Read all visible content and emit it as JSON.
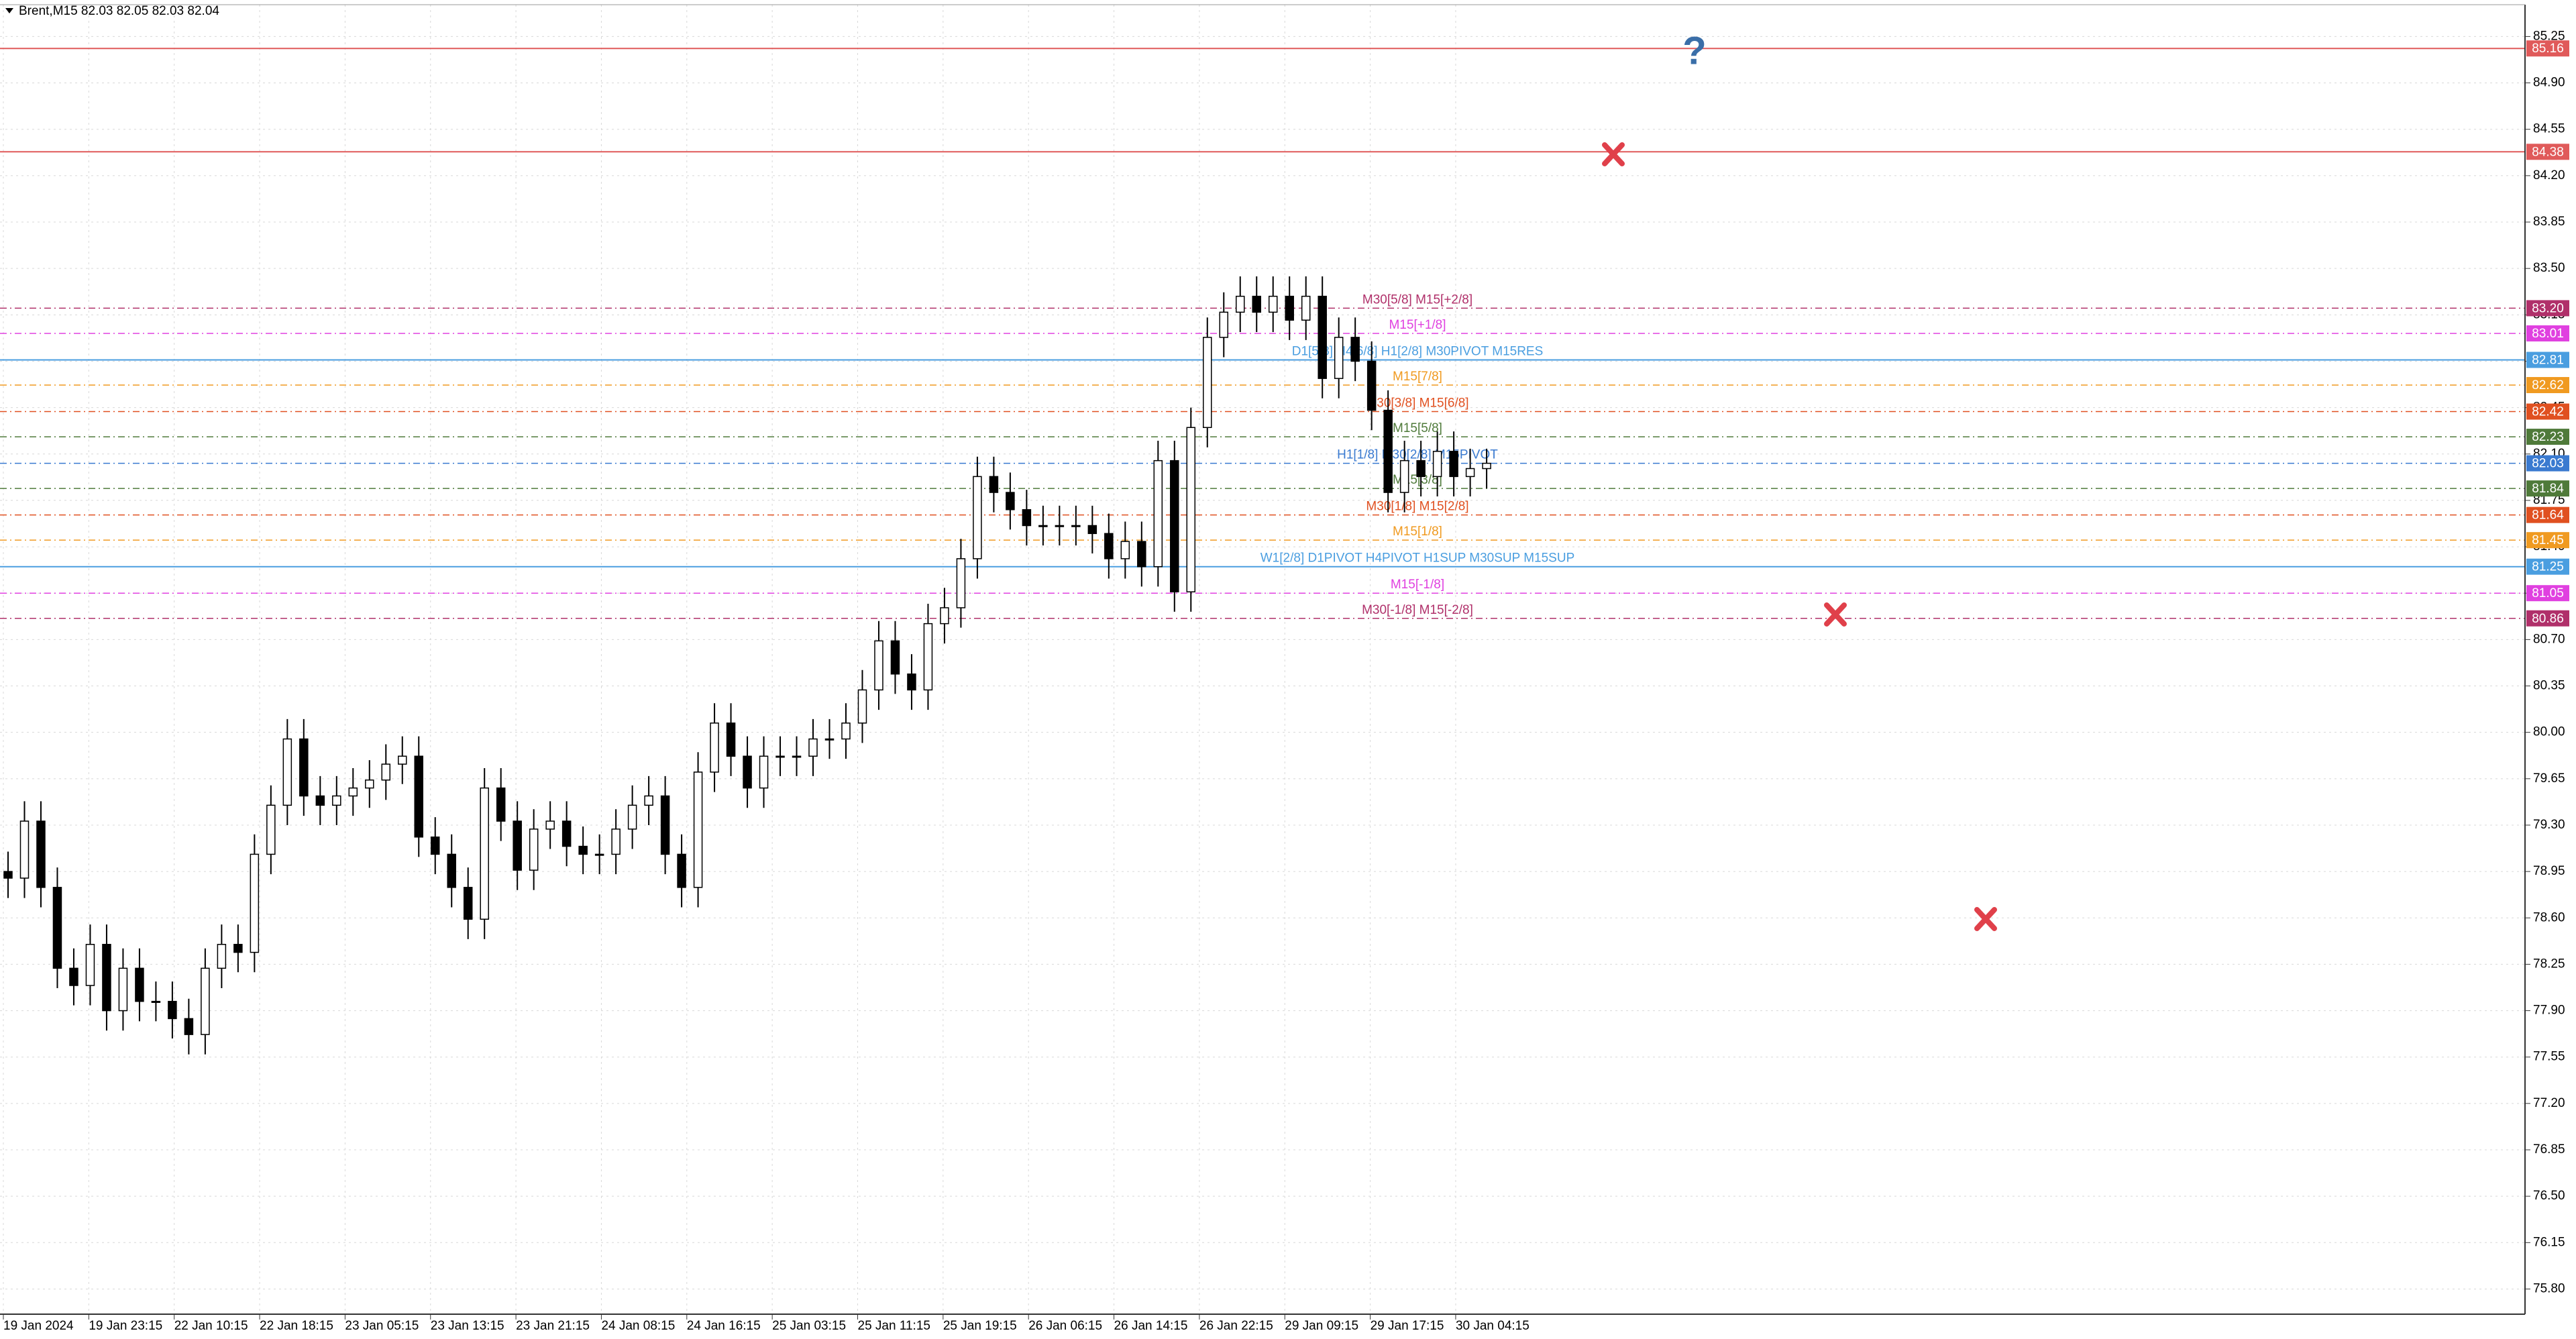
{
  "chart_data": {
    "type": "candlestick",
    "title": "Brent,M15 82.03 82.05 82.03 82.04",
    "open": [
      78.95,
      78.9,
      79.33,
      78.83,
      78.22,
      78.09,
      78.4,
      77.9,
      78.22,
      77.97,
      77.97,
      77.84,
      77.72,
      78.22,
      78.4,
      78.34,
      79.08,
      79.45,
      79.95,
      79.52,
      79.45,
      79.52,
      79.58,
      79.64,
      79.76,
      79.82,
      79.21,
      79.08,
      78.83,
      78.59,
      79.58,
      79.33,
      78.96,
      79.27,
      79.33,
      79.14,
      79.08,
      79.08,
      79.27,
      79.45,
      79.52,
      79.08,
      78.83,
      79.7,
      80.07,
      79.82,
      79.58,
      79.82,
      79.82,
      79.82,
      79.95,
      79.95,
      80.07,
      80.32,
      80.69,
      80.44,
      80.32,
      80.82,
      80.94,
      81.31,
      81.93,
      81.81,
      81.68,
      81.56,
      81.56,
      81.56,
      81.56,
      81.5,
      81.31,
      81.44,
      81.25,
      82.05,
      81.06,
      82.3,
      82.98,
      83.17,
      83.29,
      83.17,
      83.29,
      83.11,
      83.29,
      82.67,
      82.98,
      82.8,
      82.43,
      81.81,
      82.05,
      81.93,
      82.12,
      81.93,
      81.99
    ],
    "high": [
      79.1,
      79.48,
      79.48,
      78.98,
      78.37,
      78.55,
      78.55,
      78.37,
      78.37,
      78.12,
      78.12,
      77.99,
      78.37,
      78.55,
      78.55,
      79.23,
      79.6,
      80.1,
      80.1,
      79.67,
      79.67,
      79.73,
      79.79,
      79.91,
      79.97,
      79.97,
      79.36,
      79.23,
      78.98,
      79.73,
      79.73,
      79.48,
      79.42,
      79.48,
      79.48,
      79.29,
      79.23,
      79.42,
      79.6,
      79.67,
      79.67,
      79.23,
      79.85,
      80.22,
      80.22,
      79.97,
      79.97,
      79.97,
      79.97,
      80.1,
      80.1,
      80.22,
      80.47,
      80.84,
      80.84,
      80.59,
      80.97,
      81.09,
      81.46,
      82.08,
      82.08,
      81.96,
      81.83,
      81.71,
      81.71,
      81.71,
      81.71,
      81.65,
      81.59,
      81.59,
      82.2,
      82.2,
      82.45,
      83.13,
      83.32,
      83.44,
      83.44,
      83.44,
      83.44,
      83.44,
      83.44,
      83.13,
      83.13,
      82.95,
      82.58,
      82.2,
      82.2,
      82.27,
      82.27,
      82.14,
      82.14
    ],
    "low": [
      78.75,
      78.75,
      78.68,
      78.07,
      77.94,
      77.94,
      77.75,
      77.75,
      77.82,
      77.82,
      77.69,
      77.57,
      77.57,
      78.07,
      78.19,
      78.19,
      78.93,
      79.3,
      79.37,
      79.3,
      79.3,
      79.37,
      79.43,
      79.49,
      79.61,
      79.06,
      78.93,
      78.68,
      78.44,
      78.44,
      79.18,
      78.81,
      78.81,
      79.12,
      78.99,
      78.93,
      78.93,
      78.93,
      79.12,
      79.3,
      78.93,
      78.68,
      78.68,
      79.55,
      79.67,
      79.43,
      79.43,
      79.67,
      79.67,
      79.67,
      79.8,
      79.8,
      79.92,
      80.17,
      80.29,
      80.17,
      80.17,
      80.67,
      80.79,
      81.16,
      81.66,
      81.53,
      81.41,
      81.41,
      81.41,
      81.41,
      81.35,
      81.16,
      81.16,
      81.1,
      81.1,
      80.91,
      80.91,
      82.15,
      82.83,
      83.02,
      83.02,
      83.02,
      82.96,
      82.96,
      82.52,
      82.52,
      82.65,
      82.28,
      81.66,
      81.66,
      81.78,
      81.78,
      81.78,
      81.78,
      81.84
    ],
    "close": [
      78.9,
      79.33,
      78.83,
      78.22,
      78.09,
      78.4,
      77.9,
      78.22,
      77.97,
      77.97,
      77.84,
      77.72,
      78.22,
      78.4,
      78.34,
      79.08,
      79.45,
      79.95,
      79.52,
      79.45,
      79.52,
      79.58,
      79.64,
      79.76,
      79.82,
      79.21,
      79.08,
      78.83,
      78.59,
      79.58,
      79.33,
      78.96,
      79.27,
      79.33,
      79.14,
      79.08,
      79.08,
      79.27,
      79.45,
      79.52,
      79.08,
      78.83,
      79.7,
      80.07,
      79.82,
      79.58,
      79.82,
      79.82,
      79.82,
      79.95,
      79.95,
      80.07,
      80.32,
      80.69,
      80.44,
      80.32,
      80.82,
      80.94,
      81.31,
      81.93,
      81.81,
      81.68,
      81.56,
      81.56,
      81.56,
      81.56,
      81.5,
      81.31,
      81.44,
      81.25,
      82.05,
      81.06,
      82.3,
      82.98,
      83.17,
      83.29,
      83.17,
      83.29,
      83.11,
      83.29,
      82.67,
      82.98,
      82.8,
      82.43,
      81.81,
      82.05,
      81.93,
      82.12,
      81.93,
      81.99,
      82.03
    ],
    "x_labels": [
      "19 Jan 2024",
      "19 Jan 23:15",
      "22 Jan 10:15",
      "22 Jan 18:15",
      "23 Jan 05:15",
      "23 Jan 13:15",
      "23 Jan 21:15",
      "24 Jan 08:15",
      "24 Jan 16:15",
      "25 Jan 03:15",
      "25 Jan 11:15",
      "25 Jan 19:15",
      "26 Jan 06:15",
      "26 Jan 14:15",
      "26 Jan 22:15",
      "29 Jan 09:15",
      "29 Jan 17:15",
      "30 Jan 04:15"
    ],
    "ylim": [
      75.61,
      85.49
    ],
    "yticks": [
      85.25,
      {
        "value": 84.9,
        "label": "84.90"
      },
      84.55,
      {
        "value": 84.2,
        "label": "84.20"
      },
      83.85,
      {
        "value": 83.5,
        "label": "83.50"
      },
      83.15,
      {
        "value": 82.8,
        "label": "82.80"
      },
      82.45,
      {
        "value": 82.1,
        "label": "82.10"
      },
      81.75,
      {
        "value": 81.4,
        "label": "81.40"
      },
      81.05,
      {
        "value": 80.7,
        "label": "80.70"
      },
      80.35,
      {
        "value": 80,
        "label": "80.00"
      },
      79.65,
      {
        "value": 79.3,
        "label": "79.30"
      },
      78.95,
      {
        "value": 78.6,
        "label": "78.60"
      },
      78.25,
      {
        "value": 77.9,
        "label": "77.90"
      },
      77.55,
      {
        "value": 77.2,
        "label": "77.20"
      },
      76.85,
      {
        "value": 76.5,
        "label": "76.50"
      },
      76.15,
      {
        "value": 75.8,
        "label": "75.80"
      }
    ],
    "grid": true,
    "levels": [
      {
        "value": 85.16,
        "color": "#e05a5a"
      },
      {
        "value": 84.38,
        "color": "#e05a5a"
      },
      {
        "value": 83.2,
        "label": "83.20",
        "color": "#b0306a",
        "text": "M30[5/8] M15[+2/8]"
      },
      {
        "value": 83.01,
        "color": "#e040e0",
        "text": "M15[+1/8]"
      },
      {
        "value": 82.81,
        "color": "#4a9ee0",
        "text": "D1[5/8] H4[6/8] H1[2/8] M30PIVOT M15RES"
      },
      {
        "value": 82.62,
        "color": "#f09a20",
        "text": "M15[7/8]"
      },
      {
        "value": 82.42,
        "color": "#e05020",
        "text": "M30[3/8] M15[6/8]"
      },
      {
        "value": 82.23,
        "color": "#4f7a3a",
        "text": "M15[5/8]"
      },
      {
        "value": 82.03,
        "color": "#3a7ad0",
        "text": "H1[1/8] M30[2/8] M15PIVOT"
      },
      {
        "value": 81.84,
        "color": "#4f7a3a",
        "text": "M15[3/8]"
      },
      {
        "value": 81.64,
        "color": "#e05020",
        "text": "M30[1/8] M15[2/8]"
      },
      {
        "value": 81.45,
        "color": "#f09a20",
        "text": "M15[1/8]"
      },
      {
        "value": 81.25,
        "color": "#4a9ee0",
        "text": "W1[2/8] D1PIVOT H4PIVOT H1SUP M30SUP M15SUP"
      },
      {
        "value": 81.05,
        "color": "#e040e0",
        "text": "M15[-1/8]"
      },
      {
        "value": 80.86,
        "color": "#b0306a",
        "text": "M30[-1/8] M15[-2/8]"
      }
    ]
  }
}
